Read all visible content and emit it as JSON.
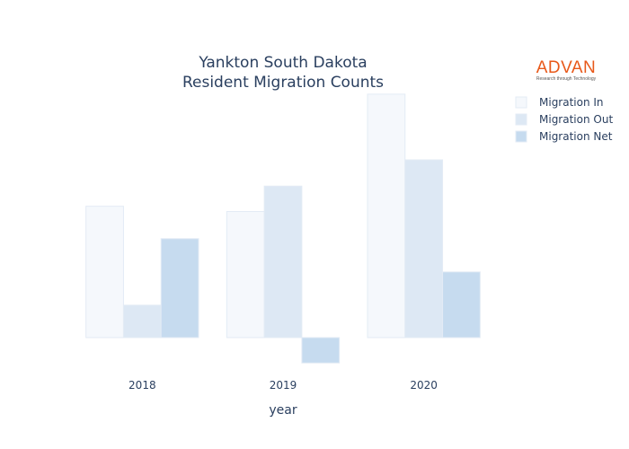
{
  "chart_data": {
    "type": "bar",
    "title": [
      "Yankton South Dakota",
      "Resident Migration Counts"
    ],
    "xlabel": "year",
    "ylabel": "",
    "categories": [
      "2018",
      "2019",
      "2020"
    ],
    "series": [
      {
        "name": "Migration In",
        "values": [
          1500,
          1440,
          2780
        ],
        "color": "#f5f8fc"
      },
      {
        "name": "Migration Out",
        "values": [
          370,
          1730,
          2030
        ],
        "color": "#dde8f4"
      },
      {
        "name": "Migration Net",
        "values": [
          1130,
          -290,
          750
        ],
        "color": "#c6dbef"
      }
    ],
    "ylim": [
      -370,
      2830
    ],
    "grid": false,
    "legend_position": "top-right"
  },
  "logo": {
    "name": "ADVAN",
    "tagline": "Research through Technology"
  }
}
